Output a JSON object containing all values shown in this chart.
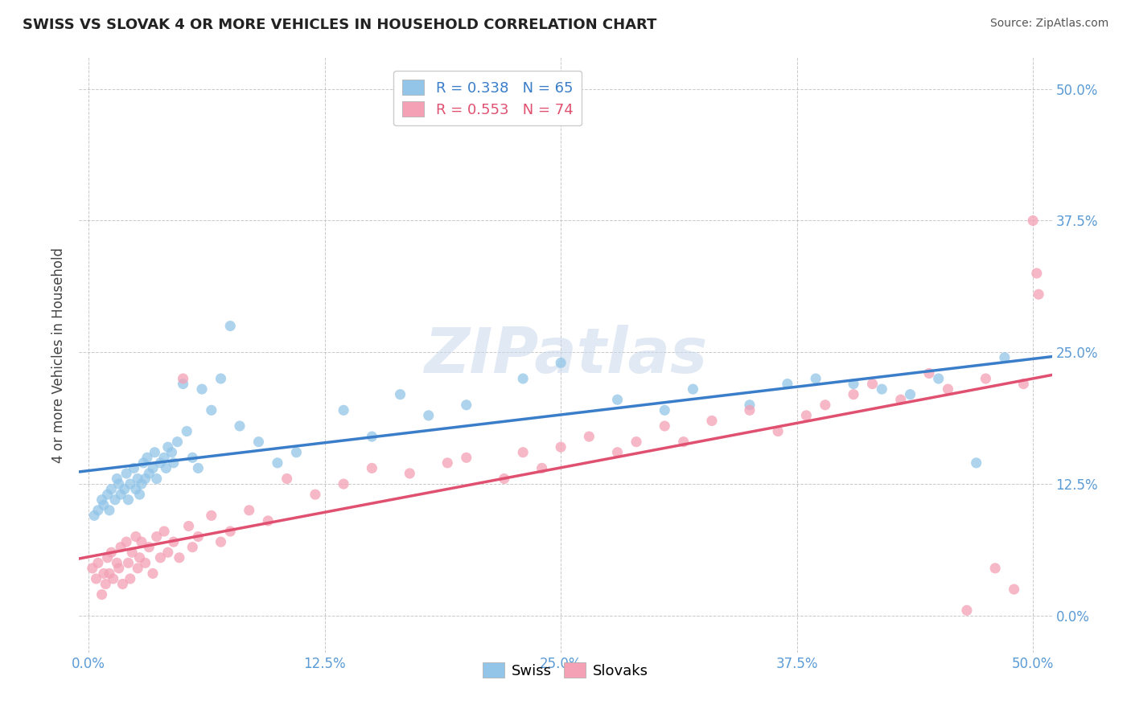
{
  "title": "SWISS VS SLOVAK 4 OR MORE VEHICLES IN HOUSEHOLD CORRELATION CHART",
  "source_text": "Source: ZipAtlas.com",
  "ylabel": "4 or more Vehicles in Household",
  "xlim": [
    -0.5,
    51.0
  ],
  "ylim": [
    -3.5,
    53.0
  ],
  "xticks": [
    0.0,
    12.5,
    25.0,
    37.5,
    50.0
  ],
  "yticks": [
    0.0,
    12.5,
    25.0,
    37.5,
    50.0
  ],
  "swiss_color": "#92C5E8",
  "slovak_color": "#F4A0B5",
  "swiss_line_color": "#3A7DC9",
  "slovak_line_color": "#E05070",
  "legend_swiss_label": "R = 0.338   N = 65",
  "legend_slovak_label": "R = 0.553   N = 74",
  "watermark": "ZIPatlas",
  "background_color": "#FFFFFF",
  "grid_color": "#BBBBBB",
  "tick_color": "#5B9BD5",
  "swiss_x": [
    0.3,
    0.5,
    0.7,
    0.8,
    1.0,
    1.1,
    1.2,
    1.4,
    1.5,
    1.6,
    1.7,
    1.9,
    2.0,
    2.1,
    2.2,
    2.4,
    2.5,
    2.6,
    2.7,
    2.8,
    2.9,
    3.0,
    3.1,
    3.2,
    3.4,
    3.5,
    3.6,
    3.8,
    4.0,
    4.1,
    4.2,
    4.4,
    4.5,
    4.7,
    5.0,
    5.2,
    5.5,
    5.8,
    6.0,
    6.5,
    7.0,
    7.5,
    8.0,
    9.0,
    10.0,
    11.0,
    13.5,
    15.0,
    16.5,
    18.0,
    20.0,
    23.0,
    25.0,
    28.0,
    30.5,
    32.0,
    35.0,
    37.0,
    38.5,
    40.5,
    42.0,
    43.5,
    45.0,
    47.0,
    48.5
  ],
  "swiss_y": [
    9.5,
    10.0,
    11.0,
    10.5,
    11.5,
    10.0,
    12.0,
    11.0,
    13.0,
    12.5,
    11.5,
    12.0,
    13.5,
    11.0,
    12.5,
    14.0,
    12.0,
    13.0,
    11.5,
    12.5,
    14.5,
    13.0,
    15.0,
    13.5,
    14.0,
    15.5,
    13.0,
    14.5,
    15.0,
    14.0,
    16.0,
    15.5,
    14.5,
    16.5,
    22.0,
    17.5,
    15.0,
    14.0,
    21.5,
    19.5,
    22.5,
    27.5,
    18.0,
    16.5,
    14.5,
    15.5,
    19.5,
    17.0,
    21.0,
    19.0,
    20.0,
    22.5,
    24.0,
    20.5,
    19.5,
    21.5,
    20.0,
    22.0,
    22.5,
    22.0,
    21.5,
    21.0,
    22.5,
    14.5,
    24.5
  ],
  "slovak_x": [
    0.2,
    0.4,
    0.5,
    0.7,
    0.8,
    0.9,
    1.0,
    1.1,
    1.2,
    1.3,
    1.5,
    1.6,
    1.7,
    1.8,
    2.0,
    2.1,
    2.2,
    2.3,
    2.5,
    2.6,
    2.7,
    2.8,
    3.0,
    3.2,
    3.4,
    3.6,
    3.8,
    4.0,
    4.2,
    4.5,
    4.8,
    5.0,
    5.3,
    5.5,
    5.8,
    6.5,
    7.0,
    7.5,
    8.5,
    9.5,
    10.5,
    12.0,
    13.5,
    15.0,
    17.0,
    19.0,
    20.0,
    22.0,
    23.0,
    24.0,
    25.0,
    26.5,
    28.0,
    29.0,
    30.5,
    31.5,
    33.0,
    35.0,
    36.5,
    38.0,
    39.0,
    40.5,
    41.5,
    43.0,
    44.5,
    45.5,
    46.5,
    47.5,
    48.0,
    49.0,
    49.5,
    50.0,
    50.2,
    50.3
  ],
  "slovak_y": [
    4.5,
    3.5,
    5.0,
    2.0,
    4.0,
    3.0,
    5.5,
    4.0,
    6.0,
    3.5,
    5.0,
    4.5,
    6.5,
    3.0,
    7.0,
    5.0,
    3.5,
    6.0,
    7.5,
    4.5,
    5.5,
    7.0,
    5.0,
    6.5,
    4.0,
    7.5,
    5.5,
    8.0,
    6.0,
    7.0,
    5.5,
    22.5,
    8.5,
    6.5,
    7.5,
    9.5,
    7.0,
    8.0,
    10.0,
    9.0,
    13.0,
    11.5,
    12.5,
    14.0,
    13.5,
    14.5,
    15.0,
    13.0,
    15.5,
    14.0,
    16.0,
    17.0,
    15.5,
    16.5,
    18.0,
    16.5,
    18.5,
    19.5,
    17.5,
    19.0,
    20.0,
    21.0,
    22.0,
    20.5,
    23.0,
    21.5,
    0.5,
    22.5,
    4.5,
    2.5,
    22.0,
    37.5,
    32.5,
    30.5
  ]
}
